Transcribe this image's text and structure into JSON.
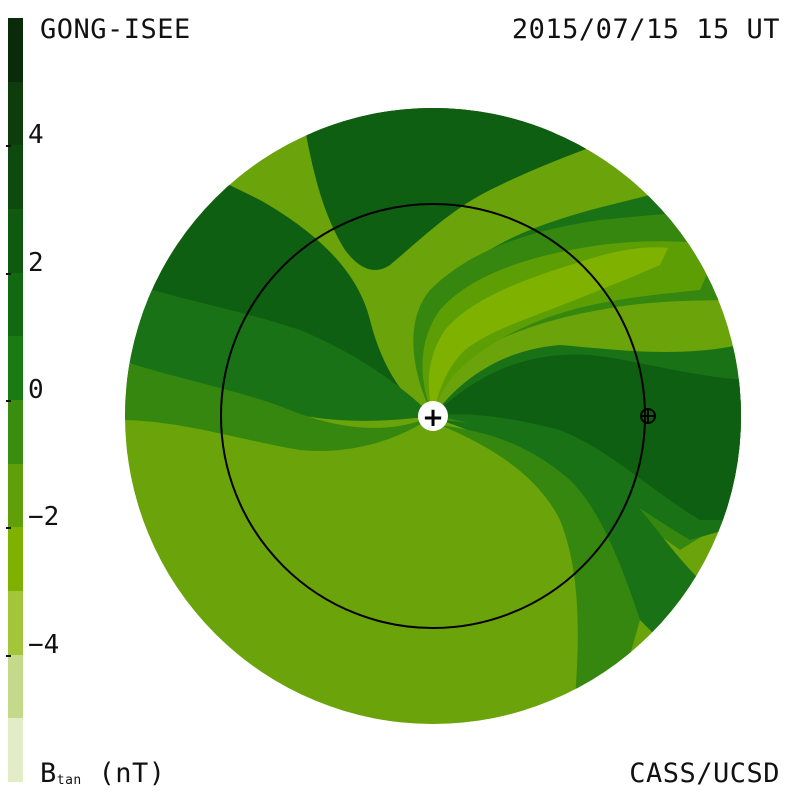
{
  "header": {
    "source": "GONG-ISEE",
    "datetime": "2015/07/15 15 UT"
  },
  "footer": {
    "quantity": "B",
    "quantity_sub": "tan",
    "unit": " (nT)",
    "credit": "CASS/UCSD"
  },
  "colorbar": {
    "ticks": [
      "4",
      "2",
      "0",
      "−2",
      "−4"
    ],
    "colors": [
      "#0a2a0a",
      "#0d3d0d",
      "#0e4a0e",
      "#0f5a10",
      "#116a12",
      "#1a7a14",
      "#3b8d10",
      "#5f9f08",
      "#7fb200",
      "#a2c53a",
      "#c5d98a",
      "#e3ecc6"
    ]
  },
  "map": {
    "colors": {
      "level3": "#0d4e0f",
      "level2": "#0f5f12",
      "level1": "#1a7216",
      "level0": "#35870f",
      "levelm1": "#5e9e05",
      "levelm2": "#6ba30a",
      "levelm3": "#7fb100"
    },
    "sun_symbol": "+",
    "earth_symbol": "earth-circle-cross"
  }
}
